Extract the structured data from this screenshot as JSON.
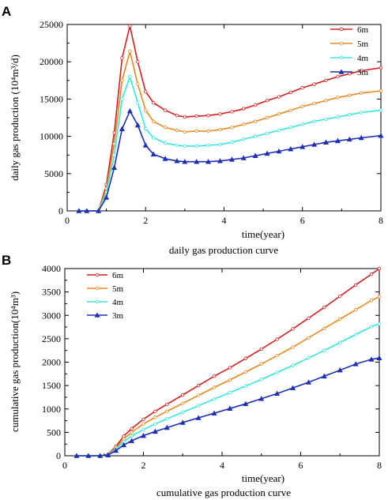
{
  "chart_data": [
    {
      "type": "line",
      "panel": "A",
      "caption": "daily gas production curve",
      "xlabel": "time(year)",
      "ylabel": "daily gas production (10⁴m³/d)",
      "xlim": [
        0,
        8
      ],
      "ylim": [
        0,
        25000
      ],
      "xticks": [
        "0",
        "2",
        "4",
        "6",
        "8"
      ],
      "yticks": [
        "0",
        "5000",
        "10000",
        "15000",
        "20000",
        "25000"
      ],
      "legend_position": "top-right",
      "grid": false,
      "x": [
        0.3,
        0.5,
        0.8,
        1.0,
        1.2,
        1.4,
        1.6,
        1.8,
        2.0,
        2.2,
        2.5,
        2.8,
        3.0,
        3.3,
        3.6,
        3.9,
        4.2,
        4.5,
        4.8,
        5.1,
        5.4,
        5.7,
        6.0,
        6.3,
        6.6,
        6.9,
        7.2,
        7.5,
        8.0
      ],
      "series": [
        {
          "name": "6m",
          "color": "#d42020",
          "marker": "open-circle",
          "values": [
            0,
            0,
            0,
            3500,
            10500,
            20500,
            24800,
            20000,
            16000,
            14500,
            13500,
            12800,
            12600,
            12700,
            12800,
            13000,
            13300,
            13700,
            14200,
            14800,
            15300,
            15900,
            16500,
            17000,
            17500,
            18000,
            18400,
            18800,
            19200
          ]
        },
        {
          "name": "5m",
          "color": "#e8891f",
          "marker": "open-circle",
          "values": [
            0,
            0,
            0,
            3000,
            9000,
            17500,
            21400,
            17000,
            13500,
            12000,
            11200,
            10800,
            10600,
            10700,
            10700,
            10900,
            11200,
            11600,
            12000,
            12500,
            13000,
            13500,
            14000,
            14400,
            14800,
            15200,
            15500,
            15800,
            16100
          ]
        },
        {
          "name": "4m",
          "color": "#35e6e0",
          "marker": "open-circle",
          "values": [
            0,
            0,
            0,
            2500,
            7500,
            15000,
            18000,
            14500,
            11000,
            9800,
            9100,
            8800,
            8700,
            8700,
            8800,
            8900,
            9200,
            9600,
            10000,
            10400,
            10800,
            11200,
            11600,
            12000,
            12300,
            12600,
            12900,
            13200,
            13500
          ]
        },
        {
          "name": "3m",
          "color": "#1f2fb4",
          "marker": "filled-triangle",
          "values": [
            0,
            0,
            0,
            1800,
            5800,
            11000,
            13400,
            11500,
            8800,
            7600,
            7000,
            6700,
            6600,
            6600,
            6600,
            6700,
            6900,
            7100,
            7400,
            7700,
            8000,
            8300,
            8600,
            8900,
            9200,
            9400,
            9600,
            9800,
            10100
          ]
        }
      ]
    },
    {
      "type": "line",
      "panel": "B",
      "caption": "cumulative gas production curve",
      "xlabel": "time(year)",
      "ylabel": "cumulative gas production(10⁴m³)",
      "xlim": [
        0,
        8
      ],
      "ylim": [
        0,
        4000
      ],
      "xticks": [
        "0",
        "2",
        "4",
        "6",
        "8"
      ],
      "yticks": [
        "0",
        "500",
        "1000",
        "1500",
        "2000",
        "2500",
        "3000",
        "3500",
        "4000"
      ],
      "legend_position": "top-left",
      "grid": false,
      "x": [
        0.3,
        0.6,
        0.9,
        1.1,
        1.3,
        1.5,
        1.7,
        2.0,
        2.3,
        2.6,
        3.0,
        3.4,
        3.8,
        4.2,
        4.6,
        5.0,
        5.4,
        5.8,
        6.2,
        6.6,
        7.0,
        7.4,
        7.8,
        8.0
      ],
      "series": [
        {
          "name": "6m",
          "color": "#d42020",
          "marker": "open-circle",
          "values": [
            0,
            0,
            0,
            30,
            200,
            420,
            580,
            780,
            950,
            1100,
            1300,
            1500,
            1700,
            1880,
            2080,
            2280,
            2490,
            2710,
            2940,
            3170,
            3410,
            3650,
            3880,
            4000
          ]
        },
        {
          "name": "5m",
          "color": "#e8891f",
          "marker": "open-circle",
          "values": [
            0,
            0,
            0,
            25,
            170,
            360,
            500,
            680,
            820,
            950,
            1120,
            1290,
            1460,
            1620,
            1790,
            1960,
            2140,
            2320,
            2520,
            2720,
            2920,
            3120,
            3320,
            3400
          ]
        },
        {
          "name": "4m",
          "color": "#35e6e0",
          "marker": "open-circle",
          "values": [
            0,
            0,
            0,
            20,
            140,
            300,
            420,
            560,
            680,
            790,
            930,
            1070,
            1210,
            1350,
            1490,
            1630,
            1780,
            1930,
            2090,
            2250,
            2420,
            2590,
            2760,
            2820
          ]
        },
        {
          "name": "3m",
          "color": "#1f2fb4",
          "marker": "filled-triangle",
          "values": [
            0,
            0,
            0,
            15,
            110,
            230,
            320,
            430,
            520,
            600,
            710,
            810,
            910,
            1010,
            1110,
            1220,
            1330,
            1450,
            1570,
            1700,
            1830,
            1960,
            2060,
            2090
          ]
        }
      ]
    }
  ]
}
